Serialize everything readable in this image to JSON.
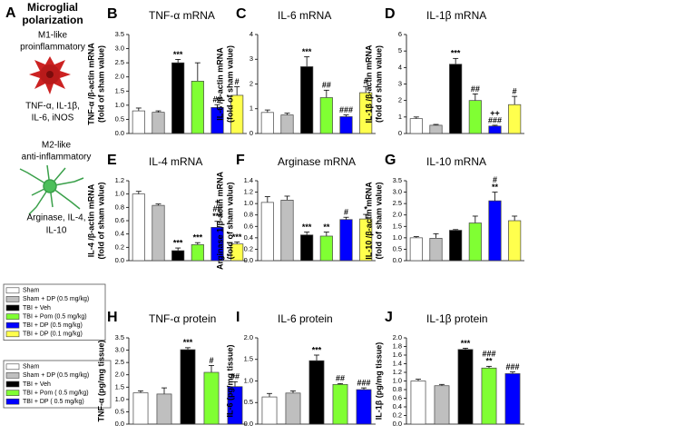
{
  "panel_a": {
    "letter": "A",
    "heading": [
      "Microglial",
      "polarization"
    ],
    "m1": {
      "label": [
        "M1-like",
        "proinflammatory"
      ],
      "markers": [
        "TNF-α, IL-1β,",
        "IL-6, iNOS"
      ]
    },
    "m2": {
      "label": [
        "M2-like",
        "anti-inflammatory"
      ],
      "markers": [
        "Arginase, IL-4,",
        "IL-10"
      ]
    }
  },
  "legends": [
    {
      "entries": [
        {
          "name": "Sham",
          "color": "#ffffff"
        },
        {
          "name": "Sham + DP (0.5 mg/kg)",
          "color": "#bfbfbf"
        },
        {
          "name": "TBI + Veh",
          "color": "#000000"
        },
        {
          "name": "TBI + Pom (0.5 mg/kg)",
          "color": "#80ff33"
        },
        {
          "name": "TBI + DP (0.5 mg/kg)",
          "color": "#0000ff"
        },
        {
          "name": "TBI + DP (0.1 mg/kg)",
          "color": "#ffff4d"
        }
      ]
    },
    {
      "entries": [
        {
          "name": "Sham",
          "color": "#ffffff"
        },
        {
          "name": "Sham + DP (0.5 mg/kg)",
          "color": "#bfbfbf"
        },
        {
          "name": "TBI + Veh",
          "color": "#000000"
        },
        {
          "name": "TBI + Pom ( 0.5 mg/kg)",
          "color": "#80ff33"
        },
        {
          "name": "TBI + DP ( 0.5 mg/kg)",
          "color": "#0000ff"
        }
      ]
    }
  ],
  "chart_data": [
    {
      "type": "bar",
      "panel": "B",
      "title": "TNF-α mRNA",
      "ylabel": [
        "TNF-α /β-actin mRNA",
        "(fold of sham value)"
      ],
      "ylim": [
        0,
        3.5
      ],
      "yticks": [
        {
          "value": 0,
          "label": "0.0"
        },
        0.5,
        {
          "value": 1,
          "label": "1.0"
        },
        1.5,
        {
          "value": 2,
          "label": "2.0"
        },
        2.5,
        {
          "value": 3,
          "label": "3.0"
        },
        3.5
      ],
      "values": [
        0.8,
        0.75,
        2.5,
        1.85,
        0.92,
        1.35
      ],
      "errors": [
        0.1,
        0.05,
        0.12,
        0.65,
        0.1,
        0.3
      ],
      "colors": [
        "#ffffff",
        "#bfbfbf",
        "#000000",
        "#80ff33",
        "#0000ff",
        "#ffff4d"
      ],
      "annotations": [
        null,
        null,
        [
          "***"
        ],
        null,
        [
          "##"
        ],
        [
          "#"
        ]
      ]
    },
    {
      "type": "bar",
      "panel": "C",
      "title": "IL-6 mRNA",
      "ylabel": [
        "IL-6 /β-actin mRNA",
        "(fold of sham value)"
      ],
      "ylim": [
        0,
        4
      ],
      "yticks": [
        0,
        1,
        2,
        3,
        4
      ],
      "values": [
        0.85,
        0.75,
        2.7,
        1.45,
        0.68,
        1.65
      ],
      "errors": [
        0.1,
        0.07,
        0.4,
        0.3,
        0.07,
        0.25
      ],
      "colors": [
        "#ffffff",
        "#bfbfbf",
        "#000000",
        "#80ff33",
        "#0000ff",
        "#ffff4d"
      ],
      "annotations": [
        null,
        null,
        [
          "***"
        ],
        [
          "##"
        ],
        [
          "###"
        ],
        [
          "#"
        ]
      ]
    },
    {
      "type": "bar",
      "panel": "D",
      "title": "IL-1β mRNA",
      "ylabel": [
        "IL-1β /β-actin mRNA",
        "(fold of sham value)"
      ],
      "ylim": [
        0,
        6
      ],
      "yticks": [
        0,
        1,
        2,
        3,
        4,
        5,
        6
      ],
      "values": [
        0.9,
        0.5,
        4.2,
        2.0,
        0.45,
        1.75
      ],
      "errors": [
        0.1,
        0.05,
        0.35,
        0.4,
        0.05,
        0.5
      ],
      "colors": [
        "#ffffff",
        "#bfbfbf",
        "#000000",
        "#80ff33",
        "#0000ff",
        "#ffff4d"
      ],
      "annotations": [
        null,
        null,
        [
          "***"
        ],
        [
          "##"
        ],
        [
          "++",
          "###"
        ],
        [
          "#"
        ]
      ]
    },
    {
      "type": "bar",
      "panel": "E",
      "title": "IL-4 mRNA",
      "ylabel": [
        "IL-4 /β-actin mRNA",
        "(fold of sham value)"
      ],
      "ylim": [
        0,
        1.2
      ],
      "yticks": [
        {
          "value": 0,
          "label": "0.0"
        },
        0.2,
        0.4,
        0.6,
        0.8,
        {
          "value": 1,
          "label": "1.0"
        },
        1.2
      ],
      "values": [
        1.0,
        0.83,
        0.15,
        0.24,
        0.5,
        0.25
      ],
      "errors": [
        0.04,
        0.02,
        0.04,
        0.03,
        0.09,
        0.03
      ],
      "colors": [
        "#ffffff",
        "#bfbfbf",
        "#000000",
        "#80ff33",
        "#0000ff",
        "#ffff4d"
      ],
      "annotations": [
        null,
        null,
        [
          "***"
        ],
        [
          "***"
        ],
        [
          "+",
          "##",
          "***"
        ],
        [
          "***"
        ]
      ]
    },
    {
      "type": "bar",
      "panel": "F",
      "title": "Arginase mRNA",
      "ylabel": [
        "Arginase 1/β-actin mRNA",
        "(fold of sham value)"
      ],
      "ylim": [
        0,
        1.4
      ],
      "yticks": [
        {
          "value": 0,
          "label": "0.0"
        },
        0.2,
        0.4,
        0.6,
        0.8,
        {
          "value": 1,
          "label": "1.0"
        },
        1.2,
        1.4
      ],
      "values": [
        1.02,
        1.06,
        0.45,
        0.43,
        0.72,
        0.73
      ],
      "errors": [
        0.1,
        0.07,
        0.05,
        0.07,
        0.04,
        0.08
      ],
      "colors": [
        "#ffffff",
        "#bfbfbf",
        "#000000",
        "#80ff33",
        "#0000ff",
        "#ffff4d"
      ],
      "annotations": [
        null,
        null,
        [
          "***"
        ],
        [
          "**"
        ],
        [
          "#"
        ],
        [
          "*"
        ]
      ]
    },
    {
      "type": "bar",
      "panel": "G",
      "title": "IL-10 mRNA",
      "ylabel": [
        "IL-10 /β-actin mRNA",
        "(fold of sham value)"
      ],
      "ylim": [
        0,
        3.5
      ],
      "yticks": [
        {
          "value": 0,
          "label": "0.0"
        },
        0.5,
        {
          "value": 1,
          "label": "1.0"
        },
        1.5,
        {
          "value": 2,
          "label": "2.0"
        },
        2.5,
        {
          "value": 3,
          "label": "3.0"
        },
        3.5
      ],
      "values": [
        1.0,
        0.98,
        1.33,
        1.65,
        2.62,
        1.75
      ],
      "errors": [
        0.05,
        0.2,
        0.03,
        0.3,
        0.38,
        0.2
      ],
      "colors": [
        "#ffffff",
        "#bfbfbf",
        "#000000",
        "#80ff33",
        "#0000ff",
        "#ffff4d"
      ],
      "annotations": [
        null,
        null,
        null,
        null,
        [
          "#",
          "**"
        ],
        null
      ]
    },
    {
      "type": "bar",
      "panel": "H",
      "title": "TNF-α protein",
      "ylabel": [
        "TNF-α  (pg/mg tissue)"
      ],
      "ylim": [
        0,
        3.5
      ],
      "yticks": [
        {
          "value": 0,
          "label": "0.0"
        },
        0.5,
        {
          "value": 1,
          "label": "1.0"
        },
        1.5,
        {
          "value": 2,
          "label": "2.0"
        },
        2.5,
        {
          "value": 3,
          "label": "3.0"
        },
        3.5
      ],
      "values": [
        1.27,
        1.22,
        3.02,
        2.1,
        1.52
      ],
      "errors": [
        0.08,
        0.25,
        0.08,
        0.28,
        0.2
      ],
      "colors": [
        "#ffffff",
        "#bfbfbf",
        "#000000",
        "#80ff33",
        "#0000ff"
      ],
      "annotations": [
        null,
        null,
        [
          "***"
        ],
        [
          "#"
        ],
        [
          "##"
        ]
      ]
    },
    {
      "type": "bar",
      "panel": "I",
      "title": "IL-6 protein",
      "ylabel": [
        "IL-6 (pg/mg tissue)"
      ],
      "ylim": [
        0,
        2
      ],
      "yticks": [
        {
          "value": 0,
          "label": "0.0"
        },
        0.5,
        {
          "value": 1,
          "label": "1.0"
        },
        1.5,
        {
          "value": 2,
          "label": "2.0"
        }
      ],
      "values": [
        0.63,
        0.72,
        1.47,
        0.92,
        0.8
      ],
      "errors": [
        0.08,
        0.05,
        0.13,
        0.02,
        0.04
      ],
      "colors": [
        "#ffffff",
        "#bfbfbf",
        "#000000",
        "#80ff33",
        "#0000ff"
      ],
      "annotations": [
        null,
        null,
        [
          "***"
        ],
        [
          "##"
        ],
        [
          "###"
        ]
      ]
    },
    {
      "type": "bar",
      "panel": "J",
      "title": "IL-1β protein",
      "ylabel": [
        "IL-1β (pg/mg tissue)"
      ],
      "ylim": [
        0,
        2
      ],
      "yticks": [
        {
          "value": 0,
          "label": "0.0"
        },
        0.2,
        0.4,
        0.6,
        0.8,
        {
          "value": 1,
          "label": "1.0"
        },
        1.2,
        1.4,
        1.6,
        1.8,
        {
          "value": 2,
          "label": "2.0"
        }
      ],
      "values": [
        1.0,
        0.89,
        1.73,
        1.3,
        1.17
      ],
      "errors": [
        0.04,
        0.03,
        0.03,
        0.04,
        0.04
      ],
      "colors": [
        "#ffffff",
        "#bfbfbf",
        "#000000",
        "#80ff33",
        "#0000ff"
      ],
      "annotations": [
        null,
        null,
        [
          "***"
        ],
        [
          "###",
          "**"
        ],
        [
          "###"
        ]
      ]
    }
  ]
}
